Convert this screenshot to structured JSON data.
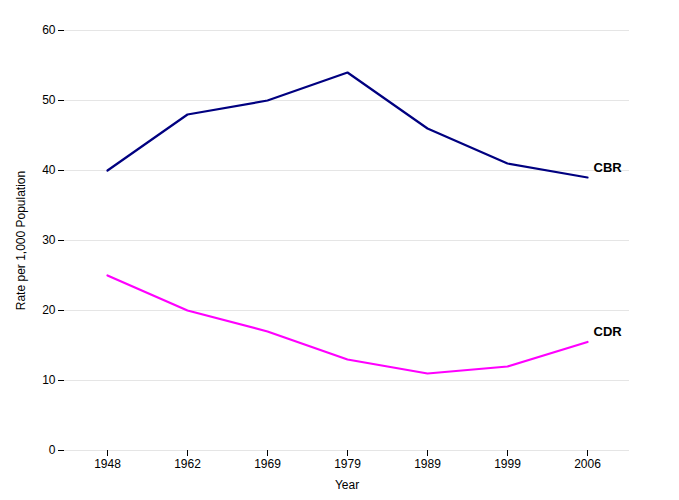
{
  "chart_data": {
    "type": "line",
    "x_label": "Year",
    "y_label": "Rate per 1,000 Population",
    "categories": [
      "1948",
      "1962",
      "1969",
      "1979",
      "1989",
      "1999",
      "2006"
    ],
    "series": [
      {
        "name": "CBR",
        "color": "#000080",
        "values": [
          40,
          48,
          50,
          54,
          46,
          41,
          39
        ]
      },
      {
        "name": "CDR",
        "color": "#FF00FF",
        "values": [
          25,
          20,
          17,
          13,
          11,
          12,
          15.5
        ]
      }
    ],
    "ylim": [
      0,
      60
    ],
    "yticks": [
      0,
      10,
      20,
      30,
      40,
      50,
      60
    ],
    "grid": true
  }
}
